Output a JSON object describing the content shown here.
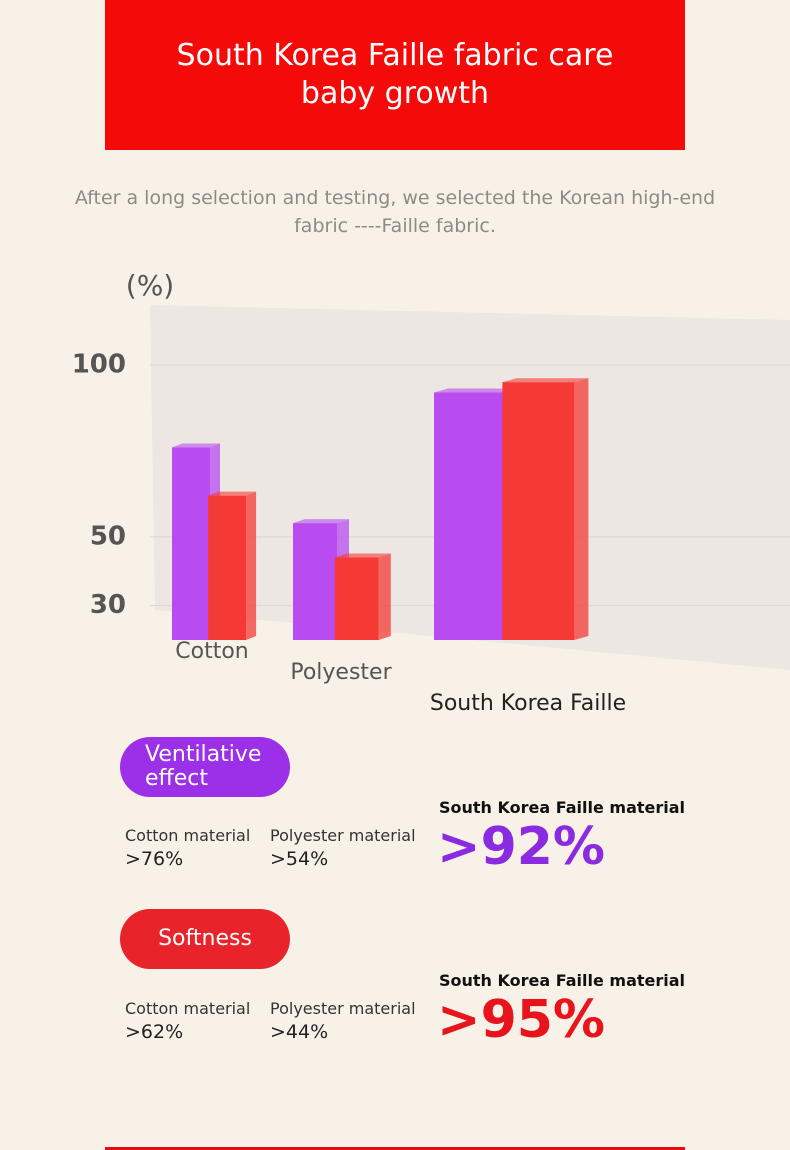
{
  "header": {
    "title": "South Korea Faille fabric care baby growth",
    "subtitle": "After a long selection and testing, we selected the Korean high-end fabric ----Faille fabric."
  },
  "stats": {
    "material_labels": [
      "Cotton material",
      "Polyester material",
      "South Korea Faille material"
    ]
  },
  "chart_data": {
    "type": "bar",
    "y_label": "(%)",
    "categories": [
      "Cotton",
      "Polyester",
      "South Korea Faille"
    ],
    "series": [
      {
        "name": "Ventilative effect",
        "color": "#b84cf0",
        "values": [
          76,
          54,
          92
        ],
        "value_labels": [
          ">76%",
          ">54%",
          ">92%"
        ]
      },
      {
        "name": "Softness",
        "color": "#f53a35",
        "values": [
          62,
          44,
          95
        ],
        "value_labels": [
          ">62%",
          ">44%",
          ">95%"
        ]
      }
    ],
    "ylim": [
      20,
      100
    ],
    "yticks": [
      30,
      50,
      100
    ]
  }
}
